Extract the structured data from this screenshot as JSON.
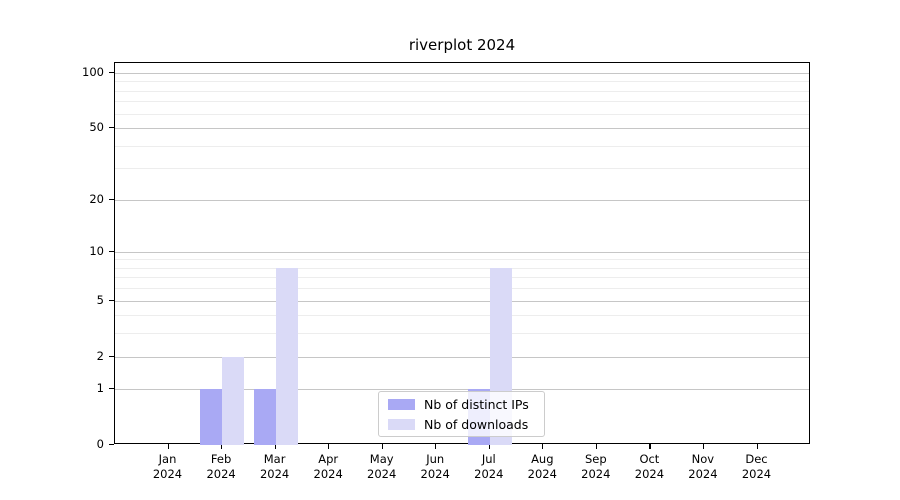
{
  "title": "riverplot 2024",
  "chart_data": {
    "type": "bar",
    "title": "riverplot 2024",
    "xlabel": "",
    "ylabel": "",
    "categories": [
      {
        "month": "Jan",
        "year": "2024"
      },
      {
        "month": "Feb",
        "year": "2024"
      },
      {
        "month": "Mar",
        "year": "2024"
      },
      {
        "month": "Apr",
        "year": "2024"
      },
      {
        "month": "May",
        "year": "2024"
      },
      {
        "month": "Jun",
        "year": "2024"
      },
      {
        "month": "Jul",
        "year": "2024"
      },
      {
        "month": "Aug",
        "year": "2024"
      },
      {
        "month": "Sep",
        "year": "2024"
      },
      {
        "month": "Oct",
        "year": "2024"
      },
      {
        "month": "Nov",
        "year": "2024"
      },
      {
        "month": "Dec",
        "year": "2024"
      }
    ],
    "series": [
      {
        "name": "Nb of distinct IPs",
        "color": "#a9a9f4",
        "values": [
          0,
          1,
          1,
          0,
          0,
          0,
          1,
          0,
          0,
          0,
          0,
          0
        ]
      },
      {
        "name": "Nb of downloads",
        "color": "#dadaf7",
        "values": [
          0,
          2,
          8,
          0,
          0,
          0,
          8,
          0,
          0,
          0,
          0,
          0
        ]
      }
    ],
    "yscale": "log1p",
    "yticks": [
      0,
      1,
      2,
      5,
      10,
      20,
      50,
      100
    ],
    "minor_yticks": [
      3,
      4,
      6,
      7,
      8,
      9,
      30,
      40,
      60,
      70,
      80,
      90
    ],
    "ylim": [
      0,
      113
    ],
    "grid": "horizontal",
    "legend_position": "lower center"
  },
  "colors": {
    "axis": "#000000",
    "grid_major": "#c6c6c6",
    "grid_minor": "#ededed",
    "legend_border": "#cccccc"
  }
}
